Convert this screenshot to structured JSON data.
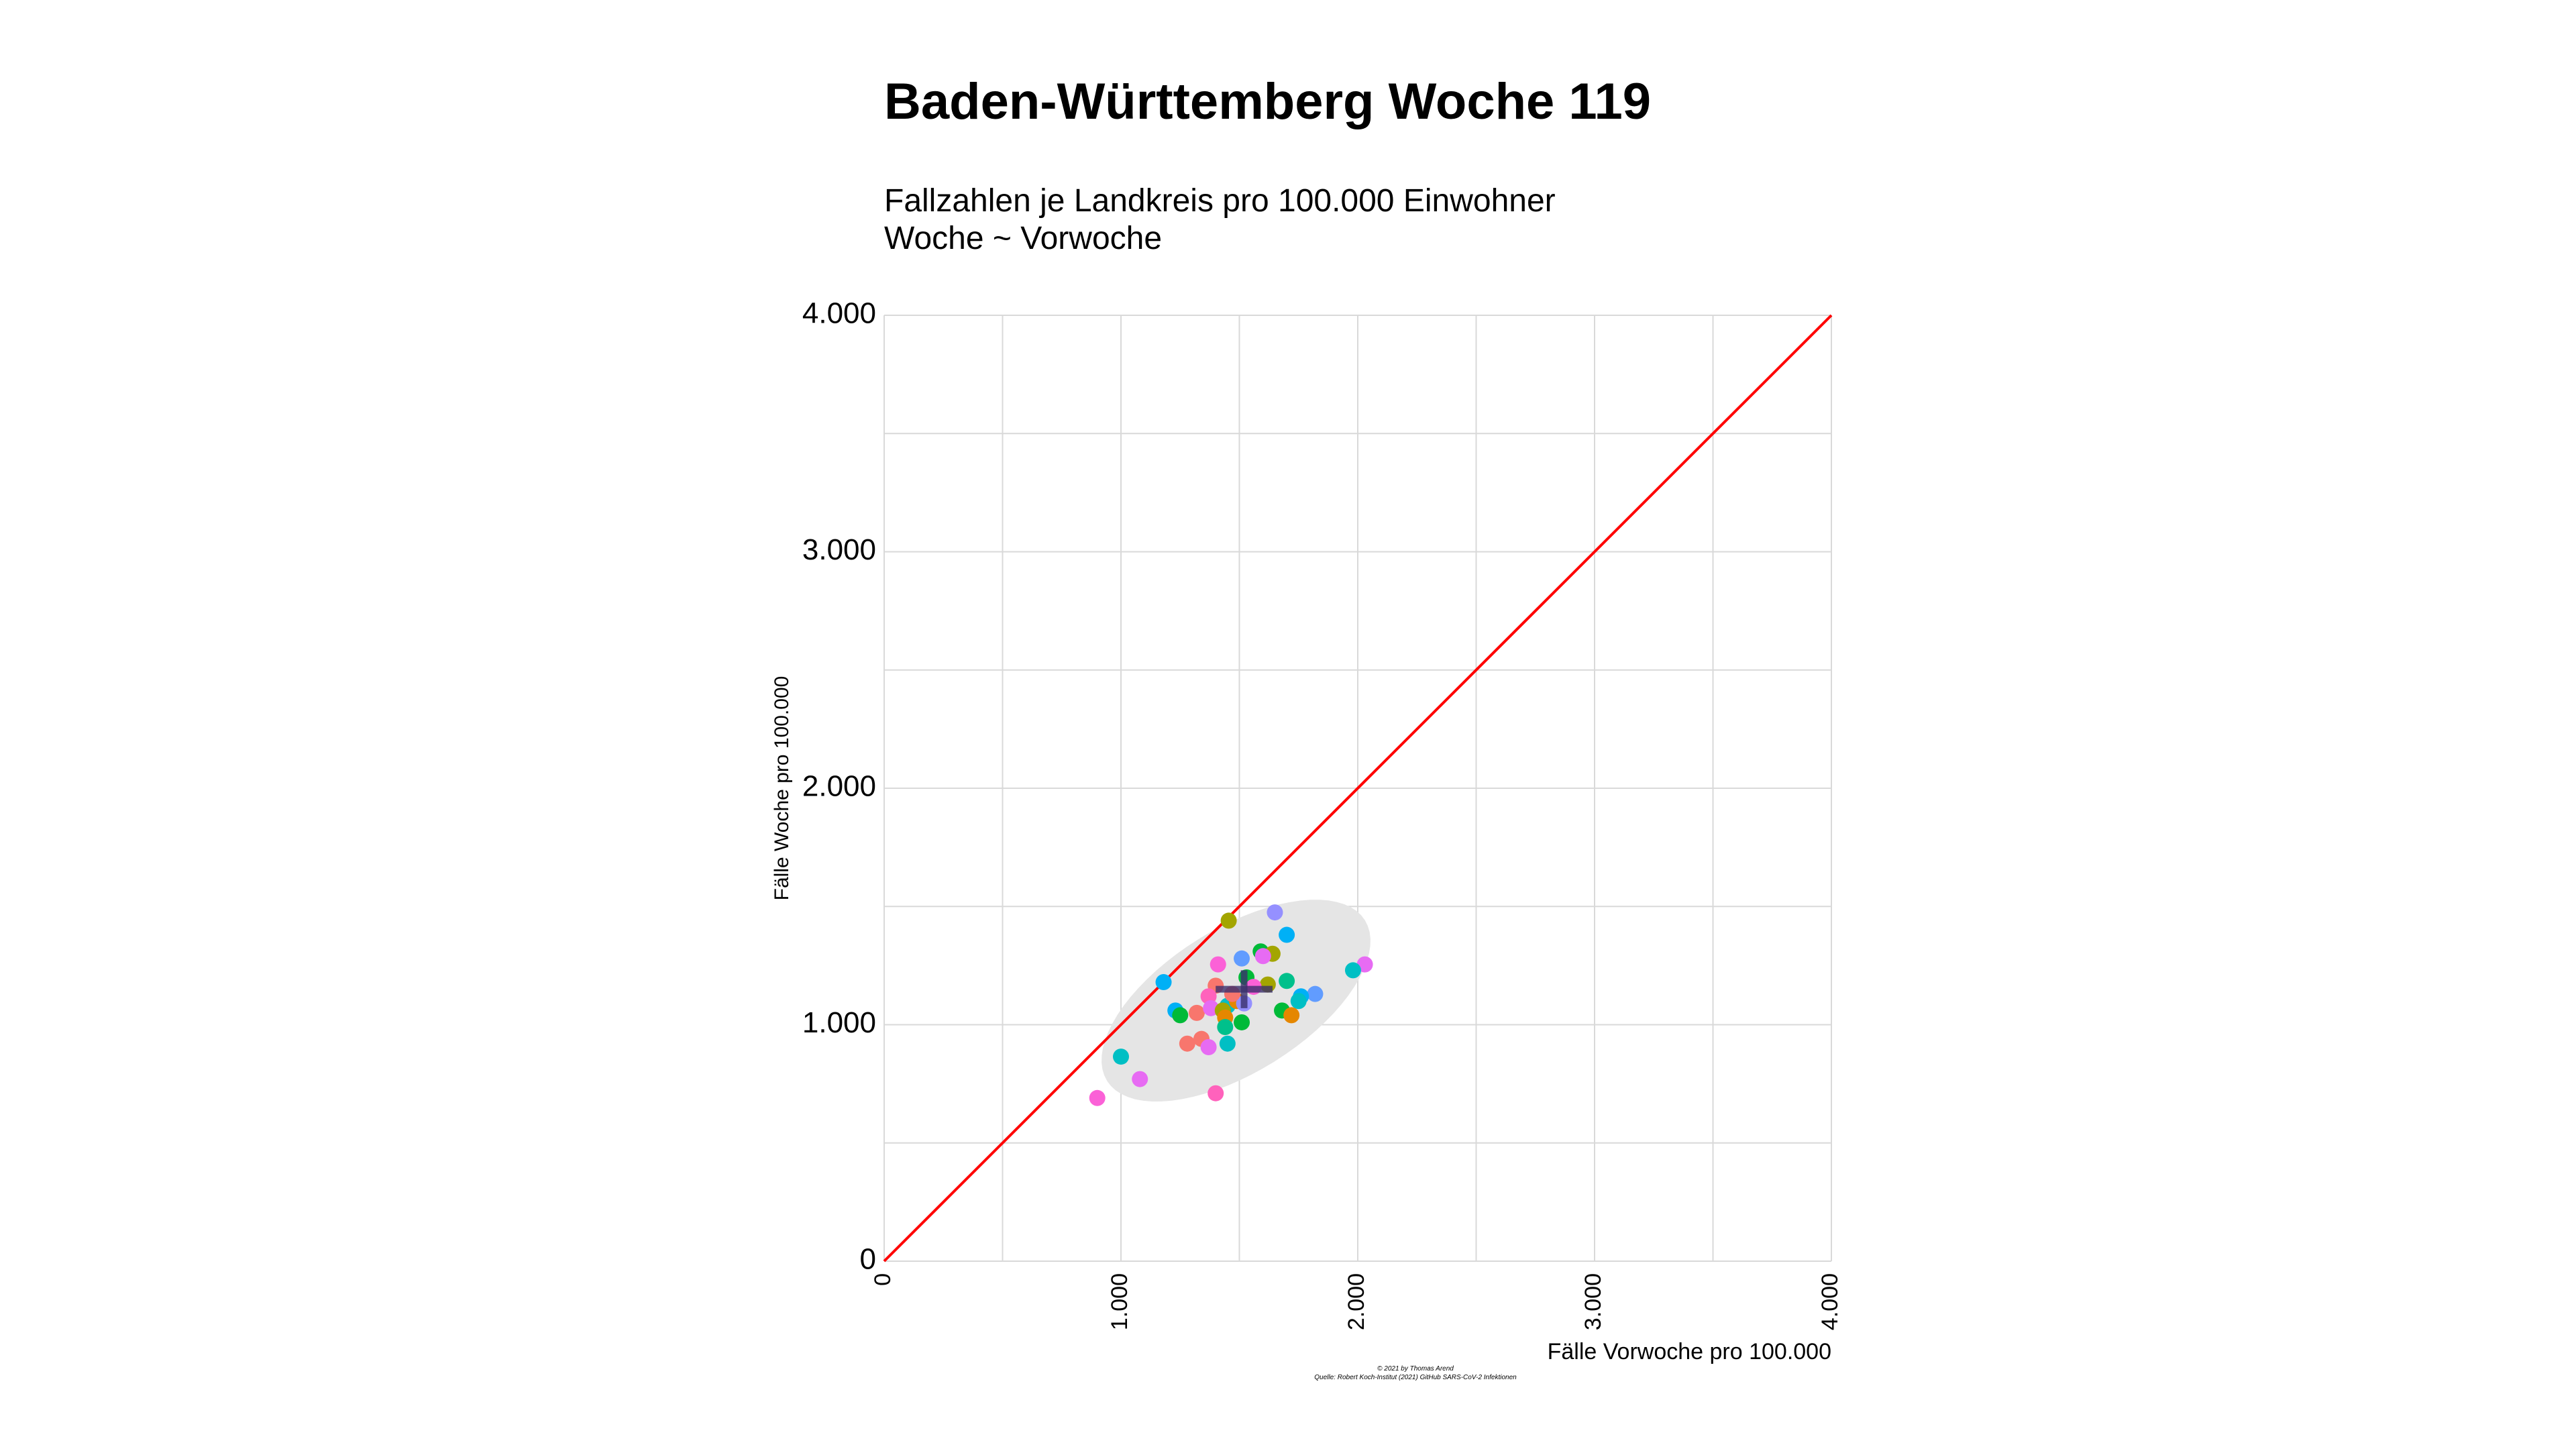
{
  "page": {
    "title": "Baden-Württemberg Woche 119",
    "subtitle_line1": "Fallzahlen je Landkreis pro 100.000 Einwohner",
    "subtitle_line2": "Woche ~ Vorwoche",
    "caption_line1": "© 2021 by Thomas Arend",
    "caption_line2": "Quelle: Robert Koch-Institut (2021) GitHub SARS-CoV-2 Infektionen"
  },
  "colors": {
    "diagonal": "#ff0000",
    "grid": "#d9d9d9",
    "ellipse": "#e5e5e5",
    "mean_cross": "#3a2f6b"
  },
  "chart_data": {
    "type": "scatter",
    "xlabel": "Fälle Vorwoche pro 100.000",
    "ylabel": "Fälle Woche pro 100.000",
    "xlim": [
      0,
      4000
    ],
    "ylim": [
      0,
      4000
    ],
    "x_ticks": [
      "0",
      "1.000",
      "2.000",
      "3.000",
      "4.000"
    ],
    "y_ticks": [
      "0",
      "1.000",
      "2.000",
      "3.000",
      "4.000"
    ],
    "grid": true,
    "reference_line": "y = x",
    "mean": {
      "x": 1520,
      "y": 1150,
      "sd_x": 120,
      "sd_y": 80
    },
    "points": [
      {
        "x": 1455,
        "y": 1440,
        "color": "#a3a500"
      },
      {
        "x": 1650,
        "y": 1475,
        "color": "#9590ff"
      },
      {
        "x": 1700,
        "y": 1380,
        "color": "#00b0f6"
      },
      {
        "x": 1180,
        "y": 1180,
        "color": "#00b0f6"
      },
      {
        "x": 1410,
        "y": 1255,
        "color": "#fb61d7"
      },
      {
        "x": 1510,
        "y": 1280,
        "color": "#619cff"
      },
      {
        "x": 1590,
        "y": 1310,
        "color": "#00ba38"
      },
      {
        "x": 1640,
        "y": 1300,
        "color": "#a3a500"
      },
      {
        "x": 1600,
        "y": 1290,
        "color": "#e76bf3"
      },
      {
        "x": 2030,
        "y": 1255,
        "color": "#e76bf3"
      },
      {
        "x": 1980,
        "y": 1230,
        "color": "#00bfc4"
      },
      {
        "x": 1700,
        "y": 1185,
        "color": "#00c08b"
      },
      {
        "x": 1620,
        "y": 1170,
        "color": "#a3a500"
      },
      {
        "x": 1530,
        "y": 1200,
        "color": "#00ba38"
      },
      {
        "x": 1400,
        "y": 1165,
        "color": "#f8766d"
      },
      {
        "x": 1370,
        "y": 1120,
        "color": "#ff62bc"
      },
      {
        "x": 1450,
        "y": 1080,
        "color": "#00bfc4"
      },
      {
        "x": 1490,
        "y": 1100,
        "color": "#e58700"
      },
      {
        "x": 1520,
        "y": 1090,
        "color": "#9590ff"
      },
      {
        "x": 1820,
        "y": 1130,
        "color": "#619cff"
      },
      {
        "x": 1760,
        "y": 1120,
        "color": "#00b0f6"
      },
      {
        "x": 1750,
        "y": 1100,
        "color": "#00bfc4"
      },
      {
        "x": 1230,
        "y": 1060,
        "color": "#00b0f6"
      },
      {
        "x": 1250,
        "y": 1040,
        "color": "#00ba38"
      },
      {
        "x": 1320,
        "y": 1050,
        "color": "#f8766d"
      },
      {
        "x": 1380,
        "y": 1070,
        "color": "#e76bf3"
      },
      {
        "x": 1430,
        "y": 1060,
        "color": "#a3a500"
      },
      {
        "x": 1440,
        "y": 1030,
        "color": "#e58700"
      },
      {
        "x": 1680,
        "y": 1060,
        "color": "#00ba38"
      },
      {
        "x": 1720,
        "y": 1040,
        "color": "#e58700"
      },
      {
        "x": 1510,
        "y": 1010,
        "color": "#00ba38"
      },
      {
        "x": 1440,
        "y": 990,
        "color": "#00c08b"
      },
      {
        "x": 1340,
        "y": 940,
        "color": "#f8766d"
      },
      {
        "x": 1280,
        "y": 920,
        "color": "#f8766d"
      },
      {
        "x": 1370,
        "y": 905,
        "color": "#e76bf3"
      },
      {
        "x": 1450,
        "y": 920,
        "color": "#00bfc4"
      },
      {
        "x": 1000,
        "y": 865,
        "color": "#00bfc4"
      },
      {
        "x": 1080,
        "y": 770,
        "color": "#e76bf3"
      },
      {
        "x": 1400,
        "y": 710,
        "color": "#ff62bc"
      },
      {
        "x": 900,
        "y": 690,
        "color": "#fb61d7"
      },
      {
        "x": 1560,
        "y": 1160,
        "color": "#fb61d7"
      },
      {
        "x": 1470,
        "y": 1130,
        "color": "#f8766d"
      }
    ]
  }
}
